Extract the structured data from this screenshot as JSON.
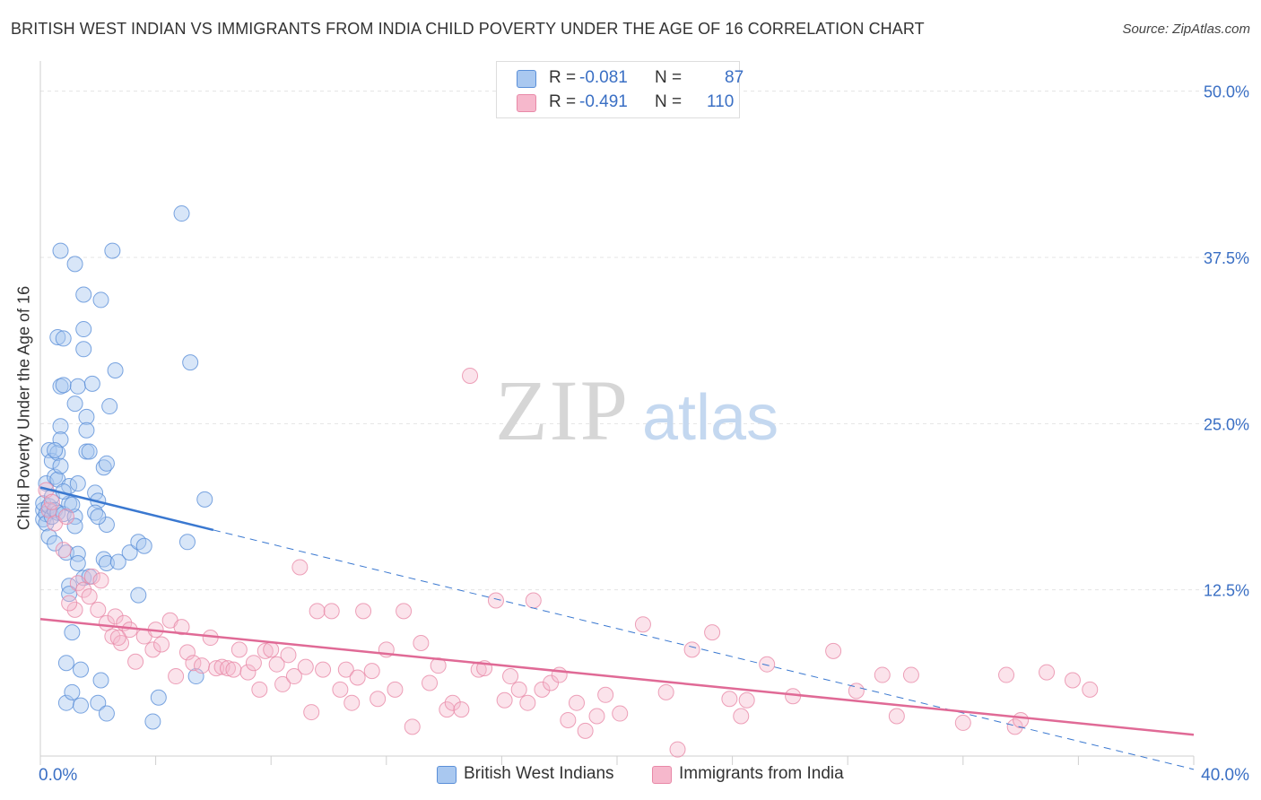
{
  "title": "BRITISH WEST INDIAN VS IMMIGRANTS FROM INDIA CHILD POVERTY UNDER THE AGE OF 16 CORRELATION CHART",
  "source": "Source: ZipAtlas.com",
  "watermark": {
    "zip": "ZIP",
    "atlas": "atlas"
  },
  "legend": {
    "r_label": "R =",
    "n_label": "N =",
    "series1": {
      "r": "-0.081",
      "n": "87"
    },
    "series2": {
      "r": "-0.491",
      "n": "110"
    }
  },
  "colors": {
    "blue_fill": "#a9c8f0",
    "blue_stroke": "#5a8fd8",
    "blue_line": "#3a78d0",
    "pink_fill": "#f6b8cc",
    "pink_stroke": "#e889a8",
    "pink_line": "#e06a96",
    "tick_label": "#3a6fc4",
    "grid": "#e4e4e4"
  },
  "chart_data": {
    "type": "scatter",
    "title": "BRITISH WEST INDIAN VS IMMIGRANTS FROM INDIA CHILD POVERTY UNDER THE AGE OF 16 CORRELATION CHART",
    "xlabel": "",
    "ylabel": "Child Poverty Under the Age of 16",
    "xlim": [
      0,
      40
    ],
    "ylim": [
      0,
      52
    ],
    "x_tick_labels": [
      "0.0%",
      "40.0%"
    ],
    "y_ticks": [
      12.5,
      25.0,
      37.5,
      50.0
    ],
    "y_tick_labels": [
      "12.5%",
      "25.0%",
      "37.5%",
      "50.0%"
    ],
    "series": [
      {
        "name": "British West Indians",
        "r": -0.081,
        "n": 87,
        "trend": {
          "x0": 0,
          "y0": 20.2,
          "x1": 6.0,
          "y1": 17.0,
          "dash_to_x": 40,
          "dash_to_y": -1.0
        },
        "points": [
          [
            0.1,
            18.5
          ],
          [
            0.1,
            17.8
          ],
          [
            0.1,
            19.0
          ],
          [
            0.2,
            18.2
          ],
          [
            0.2,
            20.5
          ],
          [
            0.2,
            17.5
          ],
          [
            0.3,
            18.8
          ],
          [
            0.3,
            16.5
          ],
          [
            0.3,
            23.0
          ],
          [
            0.4,
            22.2
          ],
          [
            0.4,
            19.5
          ],
          [
            0.4,
            18.0
          ],
          [
            0.5,
            21.0
          ],
          [
            0.5,
            18.5
          ],
          [
            0.5,
            16.0
          ],
          [
            0.6,
            22.8
          ],
          [
            0.6,
            20.8
          ],
          [
            0.6,
            18.3
          ],
          [
            0.6,
            31.5
          ],
          [
            0.7,
            27.8
          ],
          [
            0.7,
            24.8
          ],
          [
            0.7,
            23.8
          ],
          [
            0.7,
            21.8
          ],
          [
            0.7,
            38.0
          ],
          [
            0.8,
            31.4
          ],
          [
            0.8,
            27.9
          ],
          [
            0.8,
            18.2
          ],
          [
            0.9,
            15.3
          ],
          [
            0.9,
            7.0
          ],
          [
            0.9,
            4.0
          ],
          [
            1.0,
            20.3
          ],
          [
            1.0,
            19.0
          ],
          [
            1.0,
            12.8
          ],
          [
            1.0,
            12.2
          ],
          [
            1.1,
            9.3
          ],
          [
            1.1,
            4.8
          ],
          [
            1.2,
            37.0
          ],
          [
            1.2,
            26.5
          ],
          [
            1.2,
            18.0
          ],
          [
            1.2,
            17.3
          ],
          [
            1.3,
            15.2
          ],
          [
            1.3,
            14.5
          ],
          [
            1.3,
            27.8
          ],
          [
            1.4,
            6.5
          ],
          [
            1.4,
            3.8
          ],
          [
            1.5,
            34.7
          ],
          [
            1.5,
            32.1
          ],
          [
            1.5,
            30.6
          ],
          [
            1.5,
            13.4
          ],
          [
            1.6,
            25.5
          ],
          [
            1.6,
            24.5
          ],
          [
            1.6,
            22.9
          ],
          [
            1.7,
            22.9
          ],
          [
            1.7,
            13.5
          ],
          [
            1.8,
            28.0
          ],
          [
            1.9,
            19.8
          ],
          [
            2.0,
            19.2
          ],
          [
            2.0,
            4.0
          ],
          [
            2.1,
            34.3
          ],
          [
            2.1,
            5.7
          ],
          [
            2.2,
            21.7
          ],
          [
            2.2,
            14.8
          ],
          [
            2.3,
            22.0
          ],
          [
            2.3,
            17.4
          ],
          [
            2.3,
            14.5
          ],
          [
            2.3,
            3.2
          ],
          [
            2.4,
            26.3
          ],
          [
            2.5,
            38.0
          ],
          [
            2.6,
            29.0
          ],
          [
            2.7,
            14.6
          ],
          [
            3.1,
            15.3
          ],
          [
            3.4,
            16.1
          ],
          [
            3.4,
            12.1
          ],
          [
            3.9,
            2.6
          ],
          [
            4.1,
            4.4
          ],
          [
            4.9,
            40.8
          ],
          [
            5.1,
            16.1
          ],
          [
            5.2,
            29.6
          ],
          [
            5.4,
            6.0
          ],
          [
            5.7,
            19.3
          ],
          [
            1.9,
            18.3
          ],
          [
            0.8,
            19.9
          ],
          [
            2.0,
            18.0
          ],
          [
            1.3,
            20.5
          ],
          [
            0.5,
            23.0
          ],
          [
            1.1,
            18.9
          ],
          [
            3.6,
            15.8
          ]
        ]
      },
      {
        "name": "Immigrants from India",
        "r": -0.491,
        "n": 110,
        "trend": {
          "x0": 0,
          "y0": 10.3,
          "x1": 40,
          "y1": 1.6
        },
        "points": [
          [
            0.2,
            20.0
          ],
          [
            0.3,
            18.5
          ],
          [
            0.4,
            19.1
          ],
          [
            0.5,
            17.5
          ],
          [
            0.8,
            15.5
          ],
          [
            0.9,
            18.0
          ],
          [
            1.2,
            11.0
          ],
          [
            1.3,
            13.0
          ],
          [
            1.5,
            12.5
          ],
          [
            1.7,
            12.0
          ],
          [
            1.8,
            13.5
          ],
          [
            2.0,
            11.0
          ],
          [
            2.1,
            13.2
          ],
          [
            2.3,
            10.0
          ],
          [
            2.5,
            9.0
          ],
          [
            2.6,
            10.5
          ],
          [
            2.8,
            8.5
          ],
          [
            2.9,
            10.0
          ],
          [
            3.1,
            9.5
          ],
          [
            3.3,
            7.1
          ],
          [
            3.6,
            9.0
          ],
          [
            3.9,
            8.0
          ],
          [
            4.0,
            9.5
          ],
          [
            4.2,
            8.4
          ],
          [
            4.5,
            10.2
          ],
          [
            4.7,
            6.0
          ],
          [
            4.9,
            9.7
          ],
          [
            5.1,
            7.8
          ],
          [
            5.3,
            7.0
          ],
          [
            5.6,
            6.8
          ],
          [
            5.9,
            8.9
          ],
          [
            6.1,
            6.6
          ],
          [
            6.3,
            6.7
          ],
          [
            6.5,
            6.6
          ],
          [
            6.7,
            6.5
          ],
          [
            6.9,
            8.0
          ],
          [
            7.2,
            6.3
          ],
          [
            7.4,
            7.0
          ],
          [
            7.6,
            5.0
          ],
          [
            7.8,
            7.9
          ],
          [
            8.0,
            8.0
          ],
          [
            8.2,
            6.9
          ],
          [
            8.4,
            5.4
          ],
          [
            8.6,
            7.6
          ],
          [
            8.8,
            6.0
          ],
          [
            9.0,
            14.2
          ],
          [
            9.2,
            6.7
          ],
          [
            9.4,
            3.3
          ],
          [
            9.6,
            10.9
          ],
          [
            9.8,
            6.5
          ],
          [
            10.1,
            10.9
          ],
          [
            10.4,
            5.0
          ],
          [
            10.6,
            6.5
          ],
          [
            10.8,
            4.0
          ],
          [
            11.0,
            5.9
          ],
          [
            11.2,
            10.9
          ],
          [
            11.5,
            6.4
          ],
          [
            11.7,
            4.3
          ],
          [
            12.0,
            8.0
          ],
          [
            12.3,
            5.0
          ],
          [
            12.6,
            10.9
          ],
          [
            12.9,
            2.2
          ],
          [
            13.2,
            8.5
          ],
          [
            13.5,
            5.5
          ],
          [
            13.8,
            6.8
          ],
          [
            14.1,
            3.5
          ],
          [
            14.3,
            4.0
          ],
          [
            14.6,
            3.5
          ],
          [
            14.9,
            28.6
          ],
          [
            15.2,
            6.5
          ],
          [
            15.4,
            6.6
          ],
          [
            15.8,
            11.7
          ],
          [
            16.1,
            4.2
          ],
          [
            16.3,
            6.0
          ],
          [
            16.6,
            5.0
          ],
          [
            16.9,
            4.0
          ],
          [
            17.1,
            11.7
          ],
          [
            17.4,
            5.0
          ],
          [
            17.7,
            5.5
          ],
          [
            18.0,
            6.1
          ],
          [
            18.3,
            2.7
          ],
          [
            18.6,
            4.0
          ],
          [
            18.9,
            1.9
          ],
          [
            19.3,
            3.0
          ],
          [
            19.6,
            4.6
          ],
          [
            20.1,
            3.2
          ],
          [
            20.9,
            9.9
          ],
          [
            21.7,
            4.8
          ],
          [
            22.1,
            0.5
          ],
          [
            22.6,
            8.0
          ],
          [
            23.3,
            9.3
          ],
          [
            23.9,
            4.3
          ],
          [
            24.3,
            3.0
          ],
          [
            24.5,
            4.2
          ],
          [
            25.2,
            6.9
          ],
          [
            26.1,
            4.5
          ],
          [
            27.5,
            7.9
          ],
          [
            28.3,
            4.9
          ],
          [
            29.2,
            6.1
          ],
          [
            29.7,
            3.0
          ],
          [
            30.2,
            6.1
          ],
          [
            32.0,
            2.5
          ],
          [
            33.5,
            6.1
          ],
          [
            33.8,
            2.2
          ],
          [
            34.0,
            2.7
          ],
          [
            34.9,
            6.3
          ],
          [
            35.8,
            5.7
          ],
          [
            36.4,
            5.0
          ],
          [
            1.0,
            11.5
          ],
          [
            2.7,
            8.9
          ]
        ]
      }
    ]
  },
  "bottom_legend": {
    "series1_label": "British West Indians",
    "series2_label": "Immigrants from India"
  }
}
